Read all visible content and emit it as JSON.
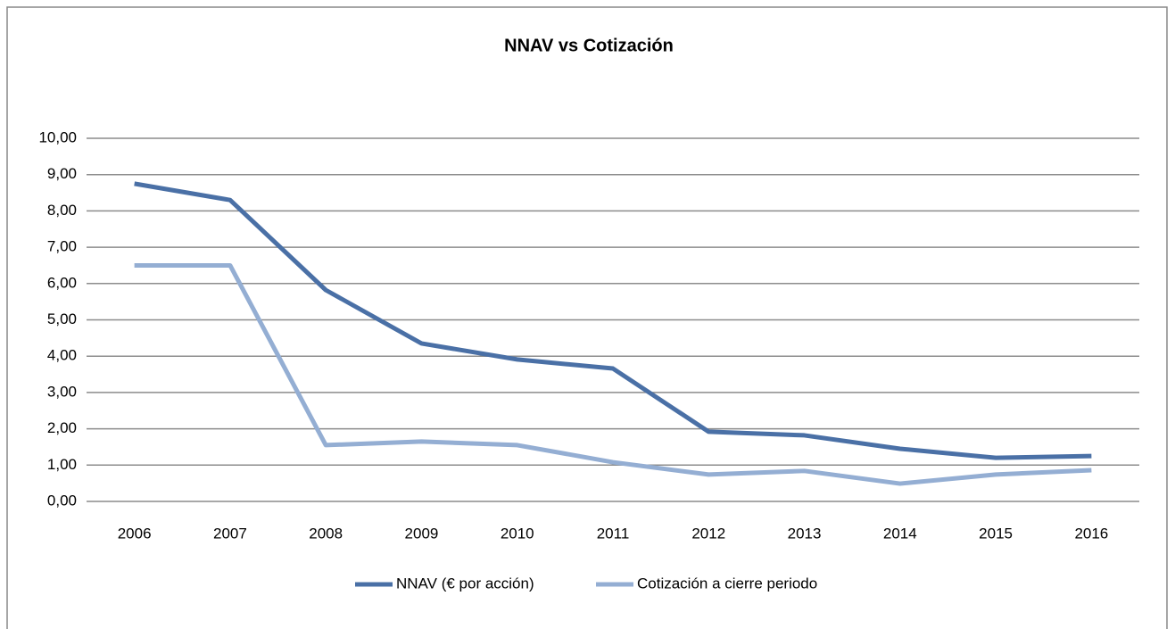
{
  "chart_data": {
    "type": "line",
    "title": "NNAV vs Cotización",
    "categories": [
      "2006",
      "2007",
      "2008",
      "2009",
      "2010",
      "2011",
      "2012",
      "2013",
      "2014",
      "2015",
      "2016"
    ],
    "series": [
      {
        "name": "NNAV (€ por acción)",
        "color": "#4a70a6",
        "values": [
          8.75,
          8.3,
          5.82,
          4.35,
          3.91,
          3.66,
          1.92,
          1.82,
          1.45,
          1.2,
          1.25
        ]
      },
      {
        "name": "Cotización a cierre periodo",
        "color": "#94aed3",
        "values": [
          6.5,
          6.5,
          1.55,
          1.65,
          1.55,
          1.08,
          0.74,
          0.84,
          0.49,
          0.74,
          0.86
        ]
      }
    ],
    "ylim": [
      0,
      10
    ],
    "yticks": [
      {
        "value": 0,
        "label": "0,00"
      },
      {
        "value": 1,
        "label": "1,00"
      },
      {
        "value": 2,
        "label": "2,00"
      },
      {
        "value": 3,
        "label": "3,00"
      },
      {
        "value": 4,
        "label": "4,00"
      },
      {
        "value": 5,
        "label": "5,00"
      },
      {
        "value": 6,
        "label": "6,00"
      },
      {
        "value": 7,
        "label": "7,00"
      },
      {
        "value": 8,
        "label": "8,00"
      },
      {
        "value": 9,
        "label": "9,00"
      },
      {
        "value": 10,
        "label": "10,00"
      }
    ],
    "grid": true,
    "legend": "bottom"
  }
}
